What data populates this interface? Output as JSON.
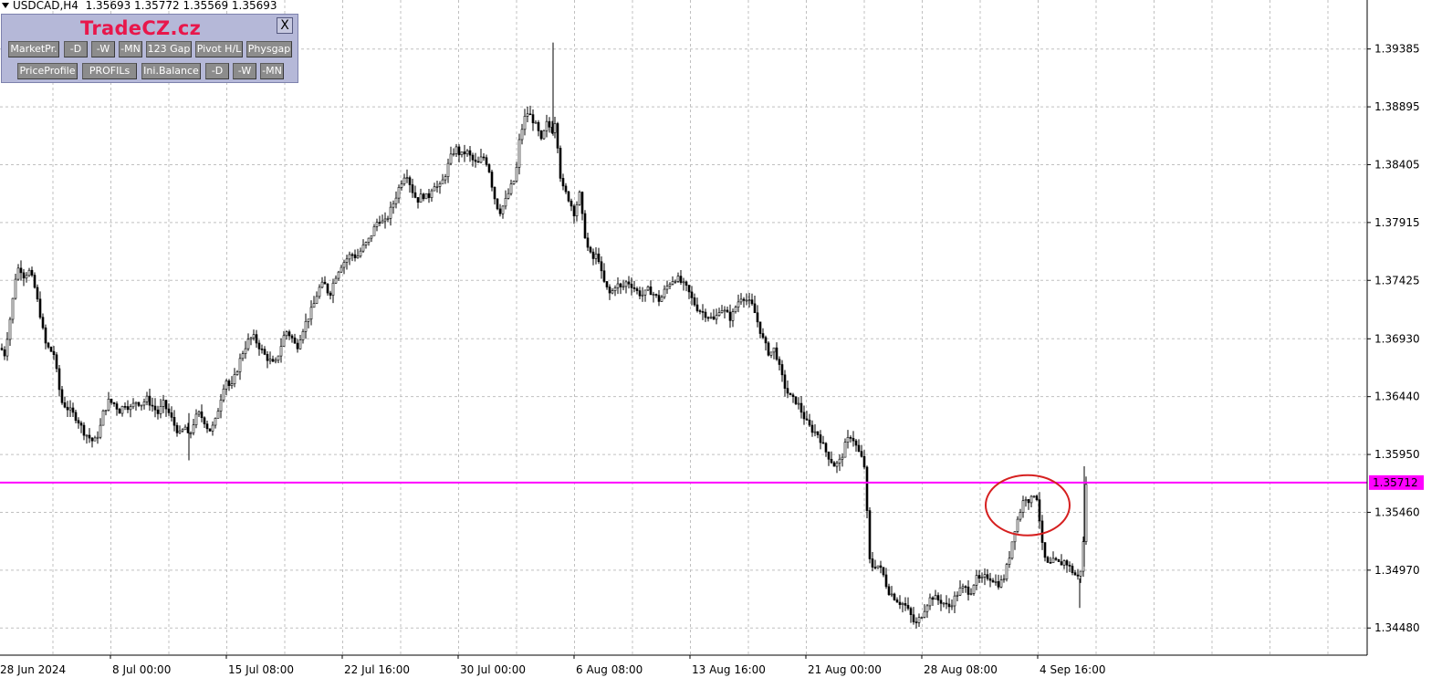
{
  "header": {
    "symbol_label": "USDCAD,H4",
    "ohlc": "1.35693 1.35772 1.35569 1.35693"
  },
  "panel": {
    "title": "TradeCZ.cz",
    "close_label": "X",
    "row1": [
      "MarketPr.",
      "-D",
      "-W",
      "-MN",
      "123 Gap",
      "Pivot H/L",
      "Physgap"
    ],
    "row2": [
      "PriceProfile",
      "PROFILs",
      "Ini.Balance",
      "-D",
      "-W",
      "-MN"
    ]
  },
  "colors": {
    "background": "#ffffff",
    "grid": "#c0c0c0",
    "candles": "#000000",
    "price_line": "#ff00ff",
    "price_label_bg": "#ff00ff",
    "annotation_circle": "#d62020",
    "panel_bg": "#b5b8d8",
    "panel_title": "#e8174b",
    "button_bg": "#8c8c8c"
  },
  "chart_data": {
    "type": "candlestick",
    "symbol": "USDCAD",
    "timeframe": "H4",
    "y_axis": {
      "ticks": [
        1.39385,
        1.38895,
        1.38405,
        1.37915,
        1.37425,
        1.3693,
        1.3644,
        1.3595,
        1.3546,
        1.3497,
        1.3448
      ],
      "tick_labels": [
        "1.39385",
        "1.38895",
        "1.38405",
        "1.37915",
        "1.37425",
        "1.36930",
        "1.36440",
        "1.35950",
        "1.35460",
        "1.34970",
        "1.34480"
      ],
      "range": [
        1.3425,
        1.398
      ]
    },
    "x_axis": {
      "tick_labels": [
        "28 Jun 2024",
        "8 Jul 00:00",
        "15 Jul 08:00",
        "22 Jul 16:00",
        "30 Jul 00:00",
        "6 Aug 08:00",
        "13 Aug 16:00",
        "21 Aug 00:00",
        "28 Aug 08:00",
        "4 Sep 16:00"
      ]
    },
    "current_price": 1.35712,
    "current_price_label": "1.35712",
    "grid": true,
    "annotation": {
      "type": "ellipse",
      "description": "highlighted consolidation near current price"
    },
    "path": [
      [
        0,
        1.3685
      ],
      [
        4,
        1.368
      ],
      [
        8,
        1.37
      ],
      [
        12,
        1.372
      ],
      [
        16,
        1.3745
      ],
      [
        20,
        1.3755
      ],
      [
        26,
        1.3745
      ],
      [
        30,
        1.3752
      ],
      [
        36,
        1.374
      ],
      [
        40,
        1.3725
      ],
      [
        44,
        1.371
      ],
      [
        48,
        1.369
      ],
      [
        52,
        1.3685
      ],
      [
        58,
        1.368
      ],
      [
        62,
        1.366
      ],
      [
        66,
        1.364
      ],
      [
        72,
        1.3635
      ],
      [
        78,
        1.363
      ],
      [
        84,
        1.3625
      ],
      [
        90,
        1.3615
      ],
      [
        96,
        1.361
      ],
      [
        102,
        1.3605
      ],
      [
        108,
        1.3615
      ],
      [
        112,
        1.363
      ],
      [
        118,
        1.364
      ],
      [
        124,
        1.3638
      ],
      [
        130,
        1.3632
      ],
      [
        136,
        1.3638
      ],
      [
        142,
        1.3634
      ],
      [
        148,
        1.364
      ],
      [
        154,
        1.3638
      ],
      [
        160,
        1.3642
      ],
      [
        166,
        1.3636
      ],
      [
        172,
        1.363
      ],
      [
        178,
        1.3638
      ],
      [
        184,
        1.363
      ],
      [
        190,
        1.362
      ],
      [
        196,
        1.3612
      ],
      [
        202,
        1.3618
      ],
      [
        206,
        1.3608
      ],
      [
        210,
        1.362
      ],
      [
        216,
        1.363
      ],
      [
        222,
        1.3625
      ],
      [
        228,
        1.3615
      ],
      [
        234,
        1.362
      ],
      [
        240,
        1.364
      ],
      [
        246,
        1.366
      ],
      [
        252,
        1.365
      ],
      [
        258,
        1.3665
      ],
      [
        264,
        1.368
      ],
      [
        270,
        1.369
      ],
      [
        276,
        1.3695
      ],
      [
        282,
        1.3688
      ],
      [
        288,
        1.368
      ],
      [
        294,
        1.3675
      ],
      [
        300,
        1.367
      ],
      [
        306,
        1.3685
      ],
      [
        312,
        1.37
      ],
      [
        318,
        1.3695
      ],
      [
        324,
        1.3685
      ],
      [
        330,
        1.37
      ],
      [
        336,
        1.371
      ],
      [
        342,
        1.372
      ],
      [
        348,
        1.3735
      ],
      [
        354,
        1.374
      ],
      [
        360,
        1.373
      ],
      [
        366,
        1.3745
      ],
      [
        372,
        1.3755
      ],
      [
        378,
        1.376
      ],
      [
        384,
        1.3765
      ],
      [
        390,
        1.3762
      ],
      [
        396,
        1.377
      ],
      [
        402,
        1.3775
      ],
      [
        408,
        1.3785
      ],
      [
        414,
        1.3795
      ],
      [
        420,
        1.379
      ],
      [
        426,
        1.38
      ],
      [
        432,
        1.3812
      ],
      [
        438,
        1.3825
      ],
      [
        444,
        1.3835
      ],
      [
        450,
        1.382
      ],
      [
        456,
        1.381
      ],
      [
        462,
        1.3815
      ],
      [
        468,
        1.3812
      ],
      [
        474,
        1.3825
      ],
      [
        480,
        1.382
      ],
      [
        486,
        1.383
      ],
      [
        492,
        1.3845
      ],
      [
        498,
        1.3855
      ],
      [
        504,
        1.3848
      ],
      [
        510,
        1.3852
      ],
      [
        516,
        1.3845
      ],
      [
        522,
        1.384
      ],
      [
        528,
        1.3848
      ],
      [
        534,
        1.384
      ],
      [
        540,
        1.3815
      ],
      [
        546,
        1.38
      ],
      [
        552,
        1.3808
      ],
      [
        558,
        1.382
      ],
      [
        564,
        1.383
      ],
      [
        568,
        1.386
      ],
      [
        572,
        1.3875
      ],
      [
        576,
        1.3885
      ],
      [
        582,
        1.388
      ],
      [
        588,
        1.387
      ],
      [
        592,
        1.386
      ],
      [
        598,
        1.3875
      ],
      [
        604,
        1.387
      ],
      [
        608,
        1.388
      ],
      [
        612,
        1.3835
      ],
      [
        616,
        1.382
      ],
      [
        622,
        1.3812
      ],
      [
        628,
        1.38
      ],
      [
        634,
        1.3815
      ],
      [
        638,
        1.379
      ],
      [
        642,
        1.3772
      ],
      [
        648,
        1.376
      ],
      [
        654,
        1.3765
      ],
      [
        658,
        1.3748
      ],
      [
        662,
        1.3738
      ],
      [
        668,
        1.373
      ],
      [
        674,
        1.374
      ],
      [
        680,
        1.3735
      ],
      [
        686,
        1.3742
      ],
      [
        692,
        1.3738
      ],
      [
        698,
        1.3732
      ],
      [
        704,
        1.373
      ],
      [
        710,
        1.3735
      ],
      [
        716,
        1.373
      ],
      [
        722,
        1.3725
      ],
      [
        728,
        1.3735
      ],
      [
        734,
        1.3742
      ],
      [
        740,
        1.3745
      ],
      [
        746,
        1.374
      ],
      [
        752,
        1.3735
      ],
      [
        758,
        1.3725
      ],
      [
        764,
        1.3718
      ],
      [
        770,
        1.3715
      ],
      [
        776,
        1.3712
      ],
      [
        782,
        1.3708
      ],
      [
        788,
        1.372
      ],
      [
        794,
        1.3715
      ],
      [
        800,
        1.371
      ],
      [
        806,
        1.3722
      ],
      [
        812,
        1.373
      ],
      [
        818,
        1.3725
      ],
      [
        824,
        1.372
      ],
      [
        830,
        1.3705
      ],
      [
        836,
        1.369
      ],
      [
        842,
        1.368
      ],
      [
        848,
        1.3685
      ],
      [
        854,
        1.3665
      ],
      [
        860,
        1.365
      ],
      [
        866,
        1.3642
      ],
      [
        872,
        1.364
      ],
      [
        878,
        1.363
      ],
      [
        884,
        1.362
      ],
      [
        890,
        1.3615
      ],
      [
        896,
        1.3612
      ],
      [
        902,
        1.36
      ],
      [
        908,
        1.3592
      ],
      [
        914,
        1.3585
      ],
      [
        920,
        1.359
      ],
      [
        926,
        1.3605
      ],
      [
        932,
        1.3612
      ],
      [
        938,
        1.36
      ],
      [
        944,
        1.359
      ],
      [
        948,
        1.358
      ],
      [
        950,
        1.351
      ],
      [
        954,
        1.35
      ],
      [
        960,
        1.3502
      ],
      [
        966,
        1.3495
      ],
      [
        972,
        1.348
      ],
      [
        978,
        1.3475
      ],
      [
        984,
        1.347
      ],
      [
        990,
        1.3468
      ],
      [
        996,
        1.346
      ],
      [
        1002,
        1.345
      ],
      [
        1008,
        1.3458
      ],
      [
        1014,
        1.3468
      ],
      [
        1020,
        1.3475
      ],
      [
        1026,
        1.3472
      ],
      [
        1032,
        1.347
      ],
      [
        1038,
        1.3465
      ],
      [
        1044,
        1.3472
      ],
      [
        1050,
        1.348
      ],
      [
        1056,
        1.3482
      ],
      [
        1062,
        1.3478
      ],
      [
        1068,
        1.349
      ],
      [
        1074,
        1.3488
      ],
      [
        1080,
        1.3492
      ],
      [
        1086,
        1.349
      ],
      [
        1092,
        1.3485
      ],
      [
        1098,
        1.3488
      ],
      [
        1104,
        1.3505
      ],
      [
        1110,
        1.353
      ],
      [
        1116,
        1.3545
      ],
      [
        1122,
        1.356
      ],
      [
        1128,
        1.3555
      ],
      [
        1134,
        1.3565
      ],
      [
        1138,
        1.354
      ],
      [
        1142,
        1.351
      ],
      [
        1148,
        1.35
      ],
      [
        1154,
        1.3505
      ],
      [
        1160,
        1.3502
      ],
      [
        1166,
        1.3505
      ],
      [
        1172,
        1.3498
      ],
      [
        1178,
        1.3492
      ],
      [
        1182,
        1.349
      ],
      [
        1186,
        1.352
      ],
      [
        1188,
        1.3572
      ],
      [
        1190,
        1.3569
      ]
    ]
  }
}
